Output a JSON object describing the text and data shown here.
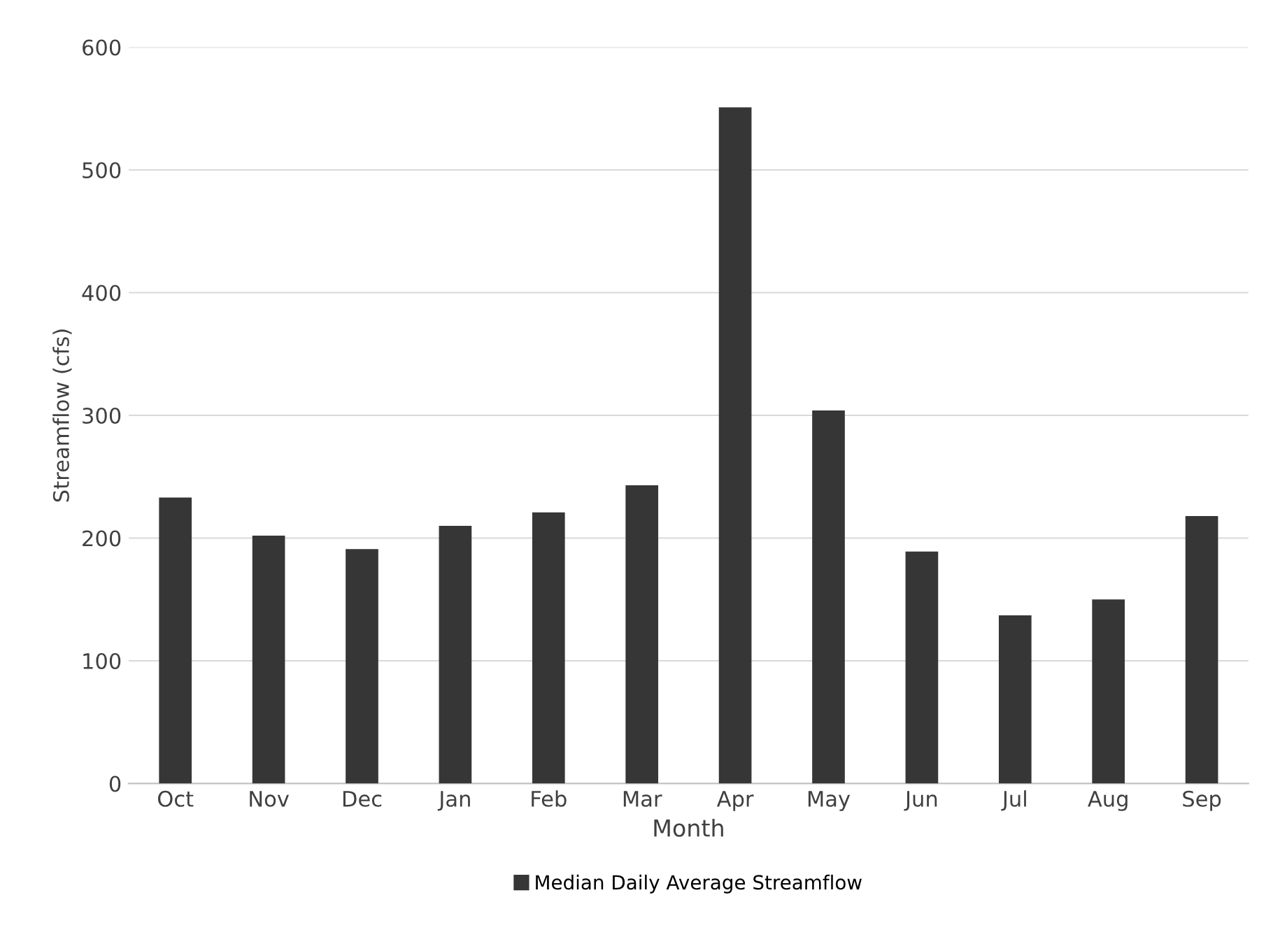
{
  "chart_data": {
    "type": "bar",
    "xlabel": "Month",
    "ylabel": "Streamflow (cfs)",
    "categories": [
      "Oct",
      "Nov",
      "Dec",
      "Jan",
      "Feb",
      "Mar",
      "Apr",
      "May",
      "Jun",
      "Jul",
      "Aug",
      "Sep"
    ],
    "series": [
      {
        "name": "Median Daily Average Streamflow",
        "color": "#363636",
        "values": [
          233,
          202,
          191,
          210,
          221,
          243,
          551,
          304,
          189,
          137,
          150,
          218
        ]
      }
    ],
    "ylim": [
      0,
      600
    ],
    "yticks": [
      0,
      100,
      200,
      300,
      400,
      500,
      600
    ],
    "grid": "y",
    "legend": "bottom"
  }
}
